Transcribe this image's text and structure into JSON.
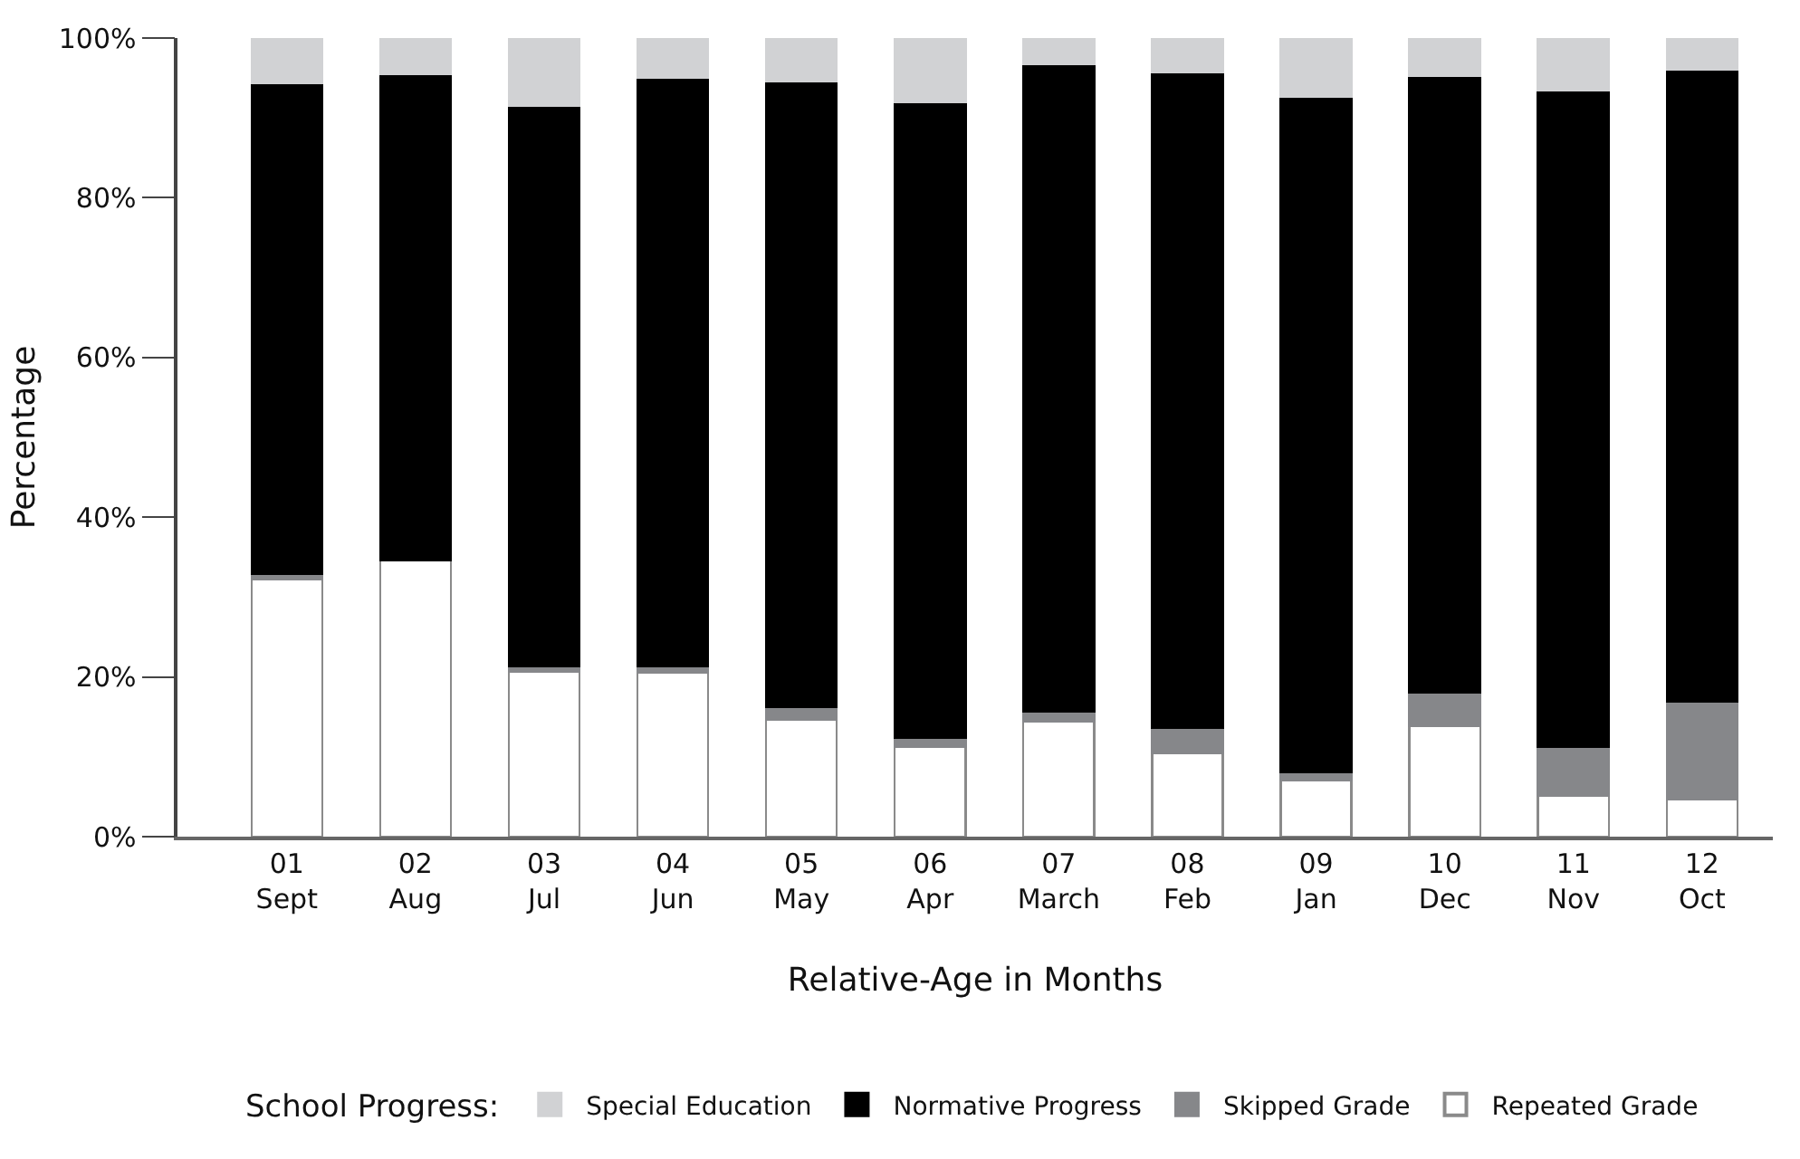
{
  "chart_data": {
    "type": "bar",
    "stacked": true,
    "xlabel": "Relative-Age in Months",
    "ylabel": "Percentage",
    "legend_title": "School Progress:",
    "legend": "bottom",
    "grid": false,
    "categories": [
      "01\nSept",
      "02\nAug",
      "03\nJul",
      "04\nJun",
      "05\nMay",
      "06\nApr",
      "07\nMarch",
      "08\nFeb",
      "09\nJan",
      "10\nDec",
      "11\nNov",
      "12\nOct"
    ],
    "ylim": [
      0,
      100
    ],
    "yticks": [
      {
        "value": 0,
        "label": "0%"
      },
      {
        "value": 20,
        "label": "20%"
      },
      {
        "value": 40,
        "label": "40%"
      },
      {
        "value": 60,
        "label": "60%"
      },
      {
        "value": 80,
        "label": "80%"
      },
      {
        "value": 100,
        "label": "100%"
      }
    ],
    "series": [
      {
        "name": "Repeated Grade",
        "color": "#ffffff",
        "values": [
          32.2,
          34.6,
          20.7,
          20.5,
          14.7,
          11.2,
          14.4,
          10.4,
          7.0,
          13.8,
          5.1,
          4.7
        ]
      },
      {
        "name": "Skipped Grade",
        "color": "#86878a",
        "values": [
          0.7,
          null,
          0.6,
          0.8,
          1.5,
          1.2,
          1.3,
          3.2,
          1.1,
          4.3,
          6.1,
          12.2
        ]
      },
      {
        "name": "Normative Progress",
        "color": "#000000",
        "values": [
          61.4,
          60.9,
          70.2,
          73.7,
          78.4,
          79.6,
          81.0,
          82.1,
          84.6,
          77.2,
          82.2,
          79.1
        ]
      },
      {
        "name": "Special Education",
        "color": "#d1d2d4",
        "values": [
          5.7,
          4.5,
          8.5,
          5.0,
          5.4,
          8.0,
          3.3,
          4.3,
          7.3,
          4.7,
          6.6,
          4.0
        ]
      }
    ]
  }
}
